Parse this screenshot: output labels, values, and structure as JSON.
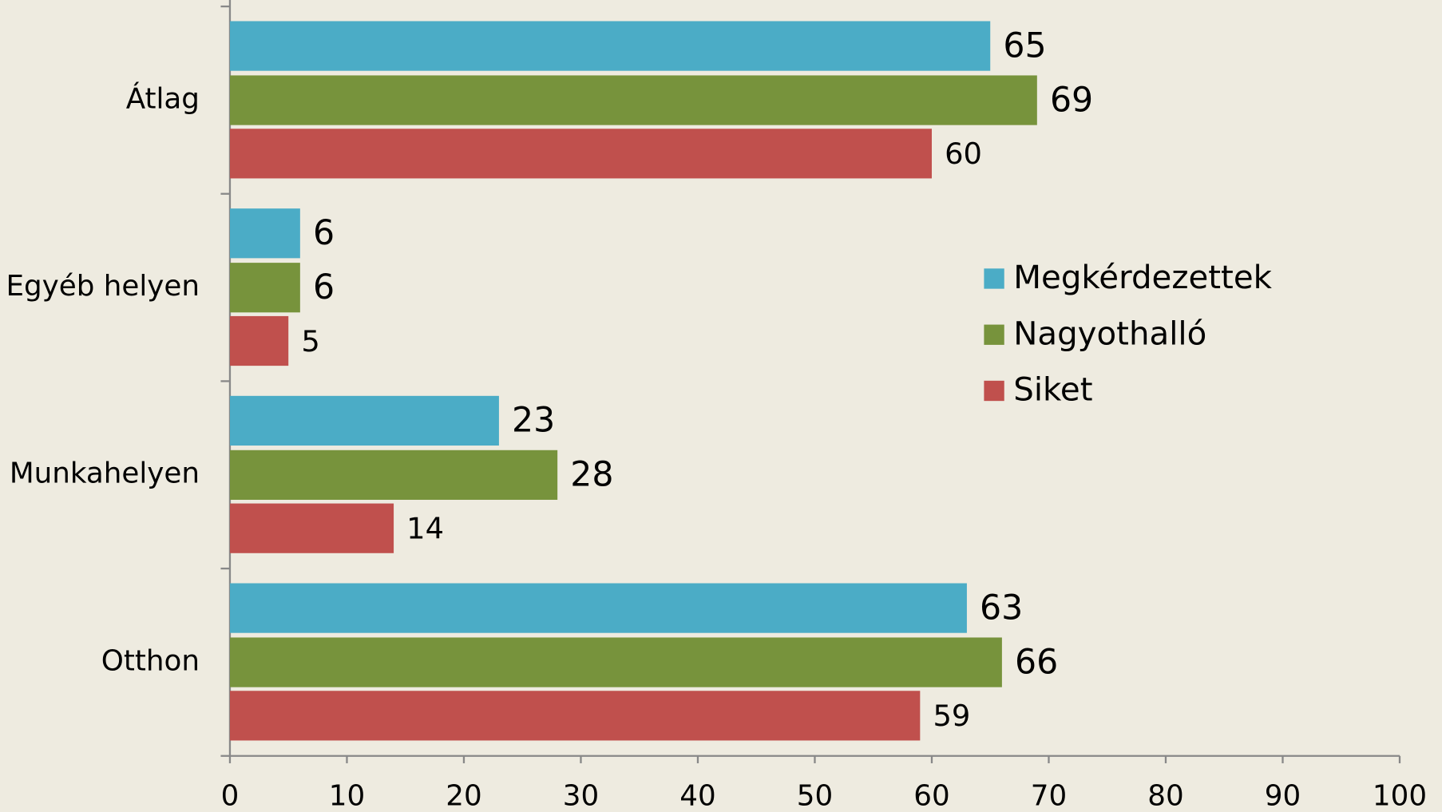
{
  "chart_data": {
    "type": "bar",
    "orientation": "horizontal",
    "categories": [
      "Átlag",
      "Egyéb helyen",
      "Munkahelyen",
      "Otthon"
    ],
    "series": [
      {
        "name": "Megkérdezettek",
        "color": "#4bacc6",
        "values": [
          65,
          6,
          23,
          63
        ]
      },
      {
        "name": "Nagyothalló",
        "color": "#77933c",
        "values": [
          69,
          6,
          28,
          66
        ]
      },
      {
        "name": "Siket",
        "color": "#c0504d",
        "values": [
          60,
          5,
          14,
          59
        ]
      }
    ],
    "xlim": [
      0,
      100
    ],
    "xticks": [
      0,
      10,
      20,
      30,
      40,
      50,
      60,
      70,
      80,
      90,
      100
    ],
    "legend": "right",
    "grid": false
  }
}
